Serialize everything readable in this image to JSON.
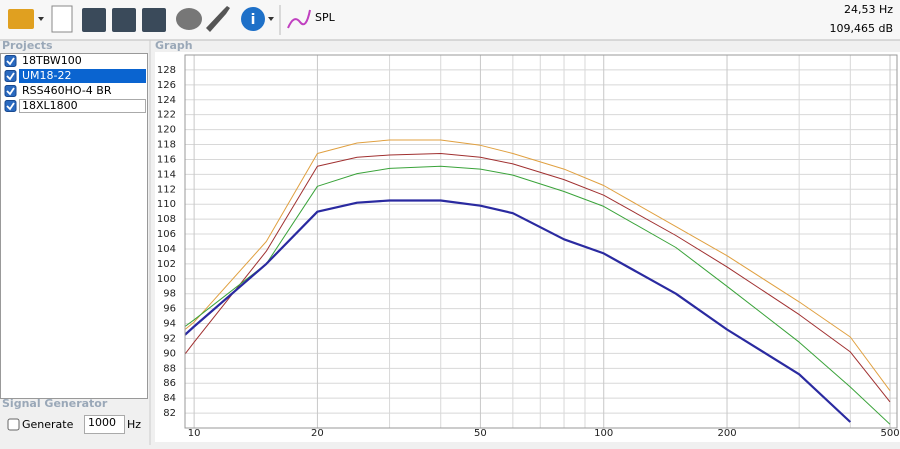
{
  "toolbar": {
    "spl_label": "SPL"
  },
  "status": {
    "frequency": "24,53 Hz",
    "level": "109,465 dB"
  },
  "projects": {
    "title": "Projects",
    "selected": 1,
    "items": [
      {
        "label": "18TBW100",
        "checked": true
      },
      {
        "label": "UM18-22",
        "checked": true
      },
      {
        "label": "RSS460HO-4 BR",
        "checked": true
      },
      {
        "label": "18XL1800",
        "checked": true
      }
    ]
  },
  "signal_generator": {
    "title": "Signal Generator",
    "generate_label": "Generate",
    "generate_checked": false,
    "frequency": "1000",
    "unit": "Hz"
  },
  "graph": {
    "title": "Graph"
  },
  "chart_data": {
    "type": "line",
    "x_scale": "log",
    "grid": true,
    "x": [
      9.5,
      10,
      15,
      20,
      25,
      30,
      40,
      50,
      60,
      80,
      100,
      150,
      200,
      300,
      400,
      500
    ],
    "xlim": [
      9.5,
      520
    ],
    "xticks": [
      10,
      20,
      50,
      100,
      200,
      500
    ],
    "x_minor_grid": [
      30,
      40,
      60,
      70,
      80,
      90,
      300,
      400
    ],
    "ylim": [
      80,
      130
    ],
    "yticks": [
      82,
      84,
      86,
      88,
      90,
      92,
      94,
      96,
      98,
      100,
      102,
      104,
      106,
      108,
      110,
      112,
      114,
      116,
      118,
      120,
      122,
      124,
      126,
      128
    ],
    "series": [
      {
        "name": "18TBW100",
        "color": "#e0a040",
        "line_width": 1,
        "values": [
          93.2,
          94.2,
          105,
          116.8,
          118.2,
          118.6,
          118.6,
          117.9,
          116.8,
          114.7,
          112.5,
          107,
          103.1,
          96.9,
          92.2,
          85
        ]
      },
      {
        "name": "UM18-22",
        "color": "#a03030",
        "line_width": 1,
        "values": [
          89.9,
          91.5,
          103.7,
          115.1,
          116.3,
          116.6,
          116.8,
          116.3,
          115.4,
          113.3,
          111.2,
          105.8,
          101.6,
          95.2,
          90.2,
          83.5
        ]
      },
      {
        "name": "RSS460HO-4 BR",
        "color": "#3aa33a",
        "line_width": 1,
        "values": [
          93.6,
          94.5,
          102,
          112.4,
          114.1,
          114.8,
          115.1,
          114.7,
          113.9,
          111.7,
          109.7,
          104.2,
          99,
          91.5,
          85.5,
          80.5
        ]
      },
      {
        "name": "18XL1800",
        "color": "#2a2aa0",
        "line_width": 2.2,
        "values": [
          92.5,
          93.6,
          102,
          109,
          110.2,
          110.5,
          110.5,
          109.8,
          108.8,
          105.3,
          103.4,
          98,
          93.2,
          87.2,
          80.8,
          null
        ]
      }
    ]
  }
}
